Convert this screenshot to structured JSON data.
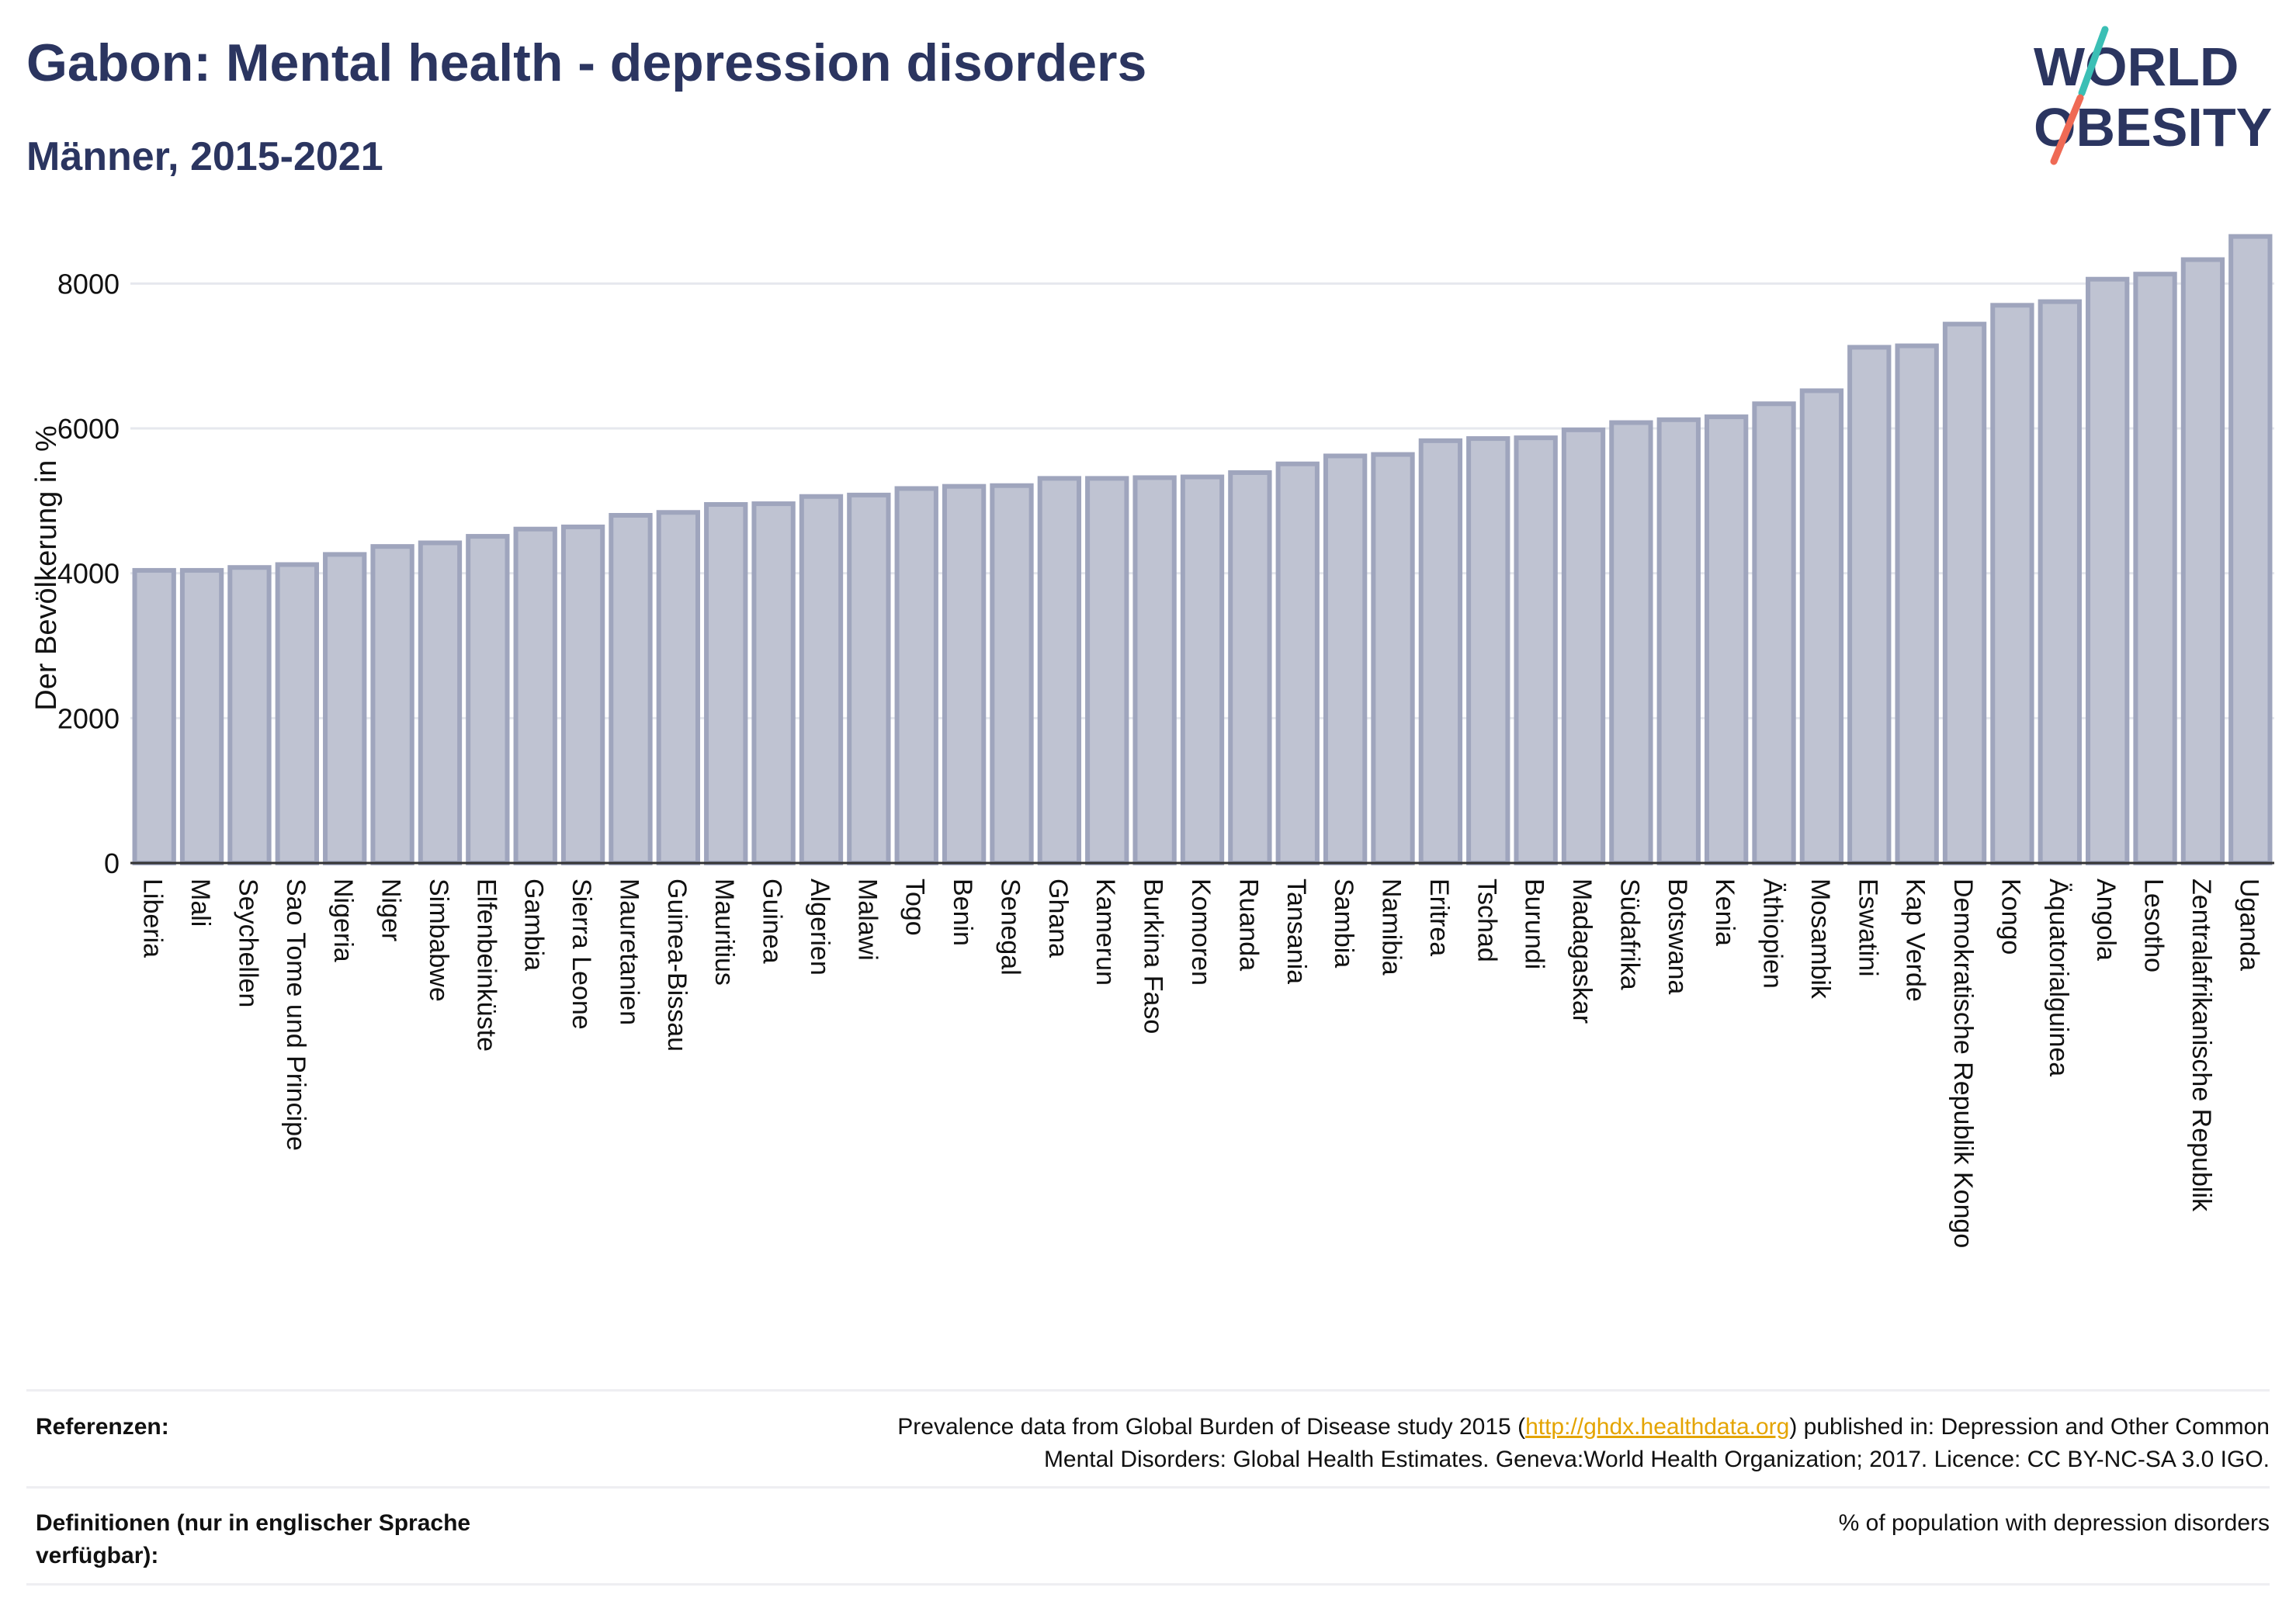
{
  "title": "Gabon: Mental health - depression disorders",
  "subtitle": "Männer, 2015-2021",
  "logo": {
    "line1": "WORLD",
    "line2": "OBESITY",
    "text_color": "#2b3560",
    "slash_top_color": "#3bbfb5",
    "slash_bottom_color": "#ef6a55"
  },
  "chart_data": {
    "type": "bar",
    "ylabel": "Der Bevölkerung in %",
    "ylim": [
      0,
      8700
    ],
    "yticks": [
      0,
      2000,
      4000,
      6000,
      8000
    ],
    "grid": true,
    "bar_color": "#bfc3d2",
    "bar_edge_color": "#9fa5bd",
    "categories": [
      "Liberia",
      "Mali",
      "Seychellen",
      "Sao Tome und Principe",
      "Nigeria",
      "Niger",
      "Simbabwe",
      "Elfenbeinküste",
      "Gambia",
      "Sierra Leone",
      "Mauretanien",
      "Guinea-Bissau",
      "Mauritius",
      "Guinea",
      "Algerien",
      "Malawi",
      "Togo",
      "Benin",
      "Senegal",
      "Ghana",
      "Kamerun",
      "Burkina Faso",
      "Komoren",
      "Ruanda",
      "Tansania",
      "Sambia",
      "Namibia",
      "Eritrea",
      "Tschad",
      "Burundi",
      "Madagaskar",
      "Südafrika",
      "Botswana",
      "Kenia",
      "Äthiopien",
      "Mosambik",
      "Eswatini",
      "Kap Verde",
      "Demokratische Republik Kongo",
      "Kongo",
      "Äquatorialguinea",
      "Angola",
      "Lesotho",
      "Zentralafrikanische Republik",
      "Uganda"
    ],
    "values": [
      4040,
      4040,
      4080,
      4120,
      4260,
      4370,
      4420,
      4510,
      4610,
      4640,
      4800,
      4840,
      4950,
      4960,
      5060,
      5080,
      5170,
      5200,
      5210,
      5310,
      5310,
      5320,
      5330,
      5390,
      5510,
      5620,
      5640,
      5830,
      5860,
      5870,
      5980,
      6080,
      6120,
      6160,
      6340,
      6520,
      7120,
      7140,
      7440,
      7700,
      7750,
      8060,
      8130,
      8330,
      8650
    ]
  },
  "references": {
    "label": "Referenzen:",
    "line1_before": "Prevalence data from Global Burden of Disease study 2015 (",
    "link": "http://ghdx.healthdata.org",
    "line1_after": ") published in: Depression and Other Common",
    "line2": "Mental Disorders: Global Health Estimates. Geneva:World Health Organization; 2017. Licence: CC BY-NC-SA 3.0 IGO."
  },
  "definitions": {
    "label_line1": "Definitionen (nur in englischer Sprache",
    "label_line2": "verfügbar):",
    "text": "% of population with depression disorders"
  }
}
